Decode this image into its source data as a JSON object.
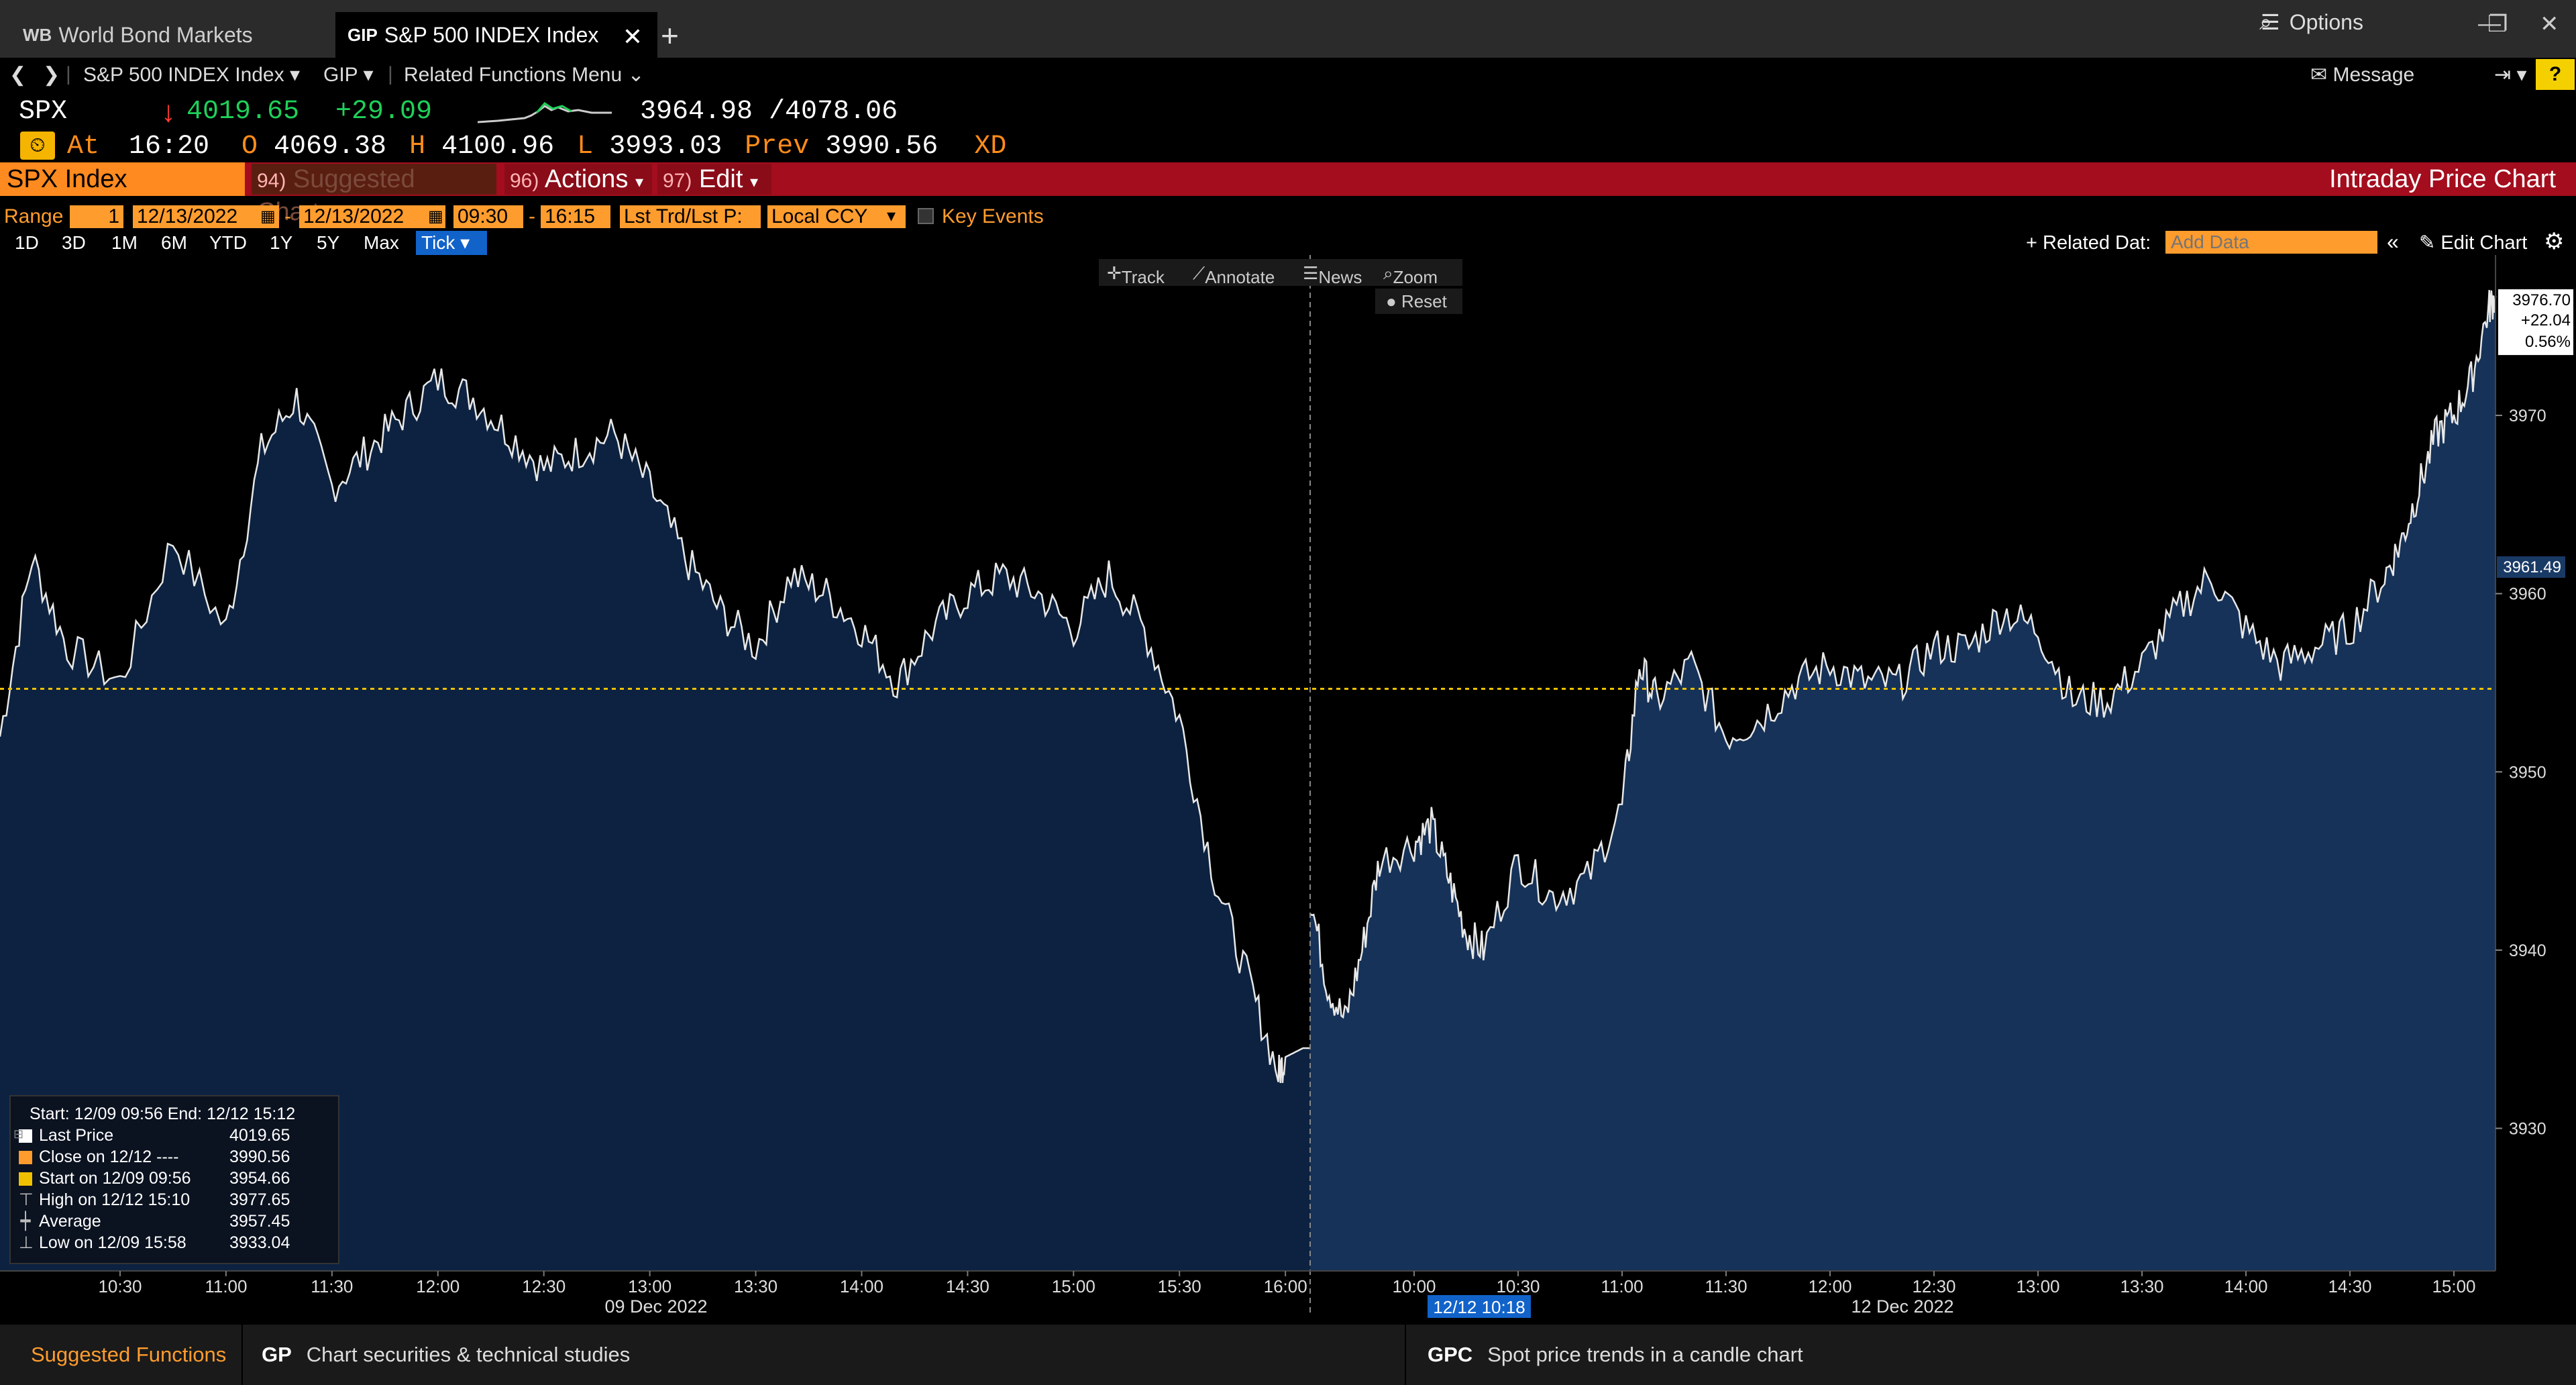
{
  "tabs": [
    {
      "code": "WB",
      "label": "World Bond Markets",
      "active": false
    },
    {
      "code": "GIP",
      "label": "S&P 500 INDEX Index",
      "active": true
    }
  ],
  "window": {
    "options_label": "Options",
    "message_label": "Message",
    "help_label": "?"
  },
  "nav": {
    "security": "S&P 500 INDEX Index",
    "function": "GIP",
    "related": "Related Functions Menu"
  },
  "quote": {
    "ticker": "SPX",
    "last": "4019.65",
    "change": "+29.09",
    "range_low": "3964.98",
    "range_high": "4078.06",
    "at_label": "At",
    "time": "16:20",
    "open_label": "O",
    "open": "4069.38",
    "high_label": "H",
    "high": "4100.96",
    "low_label": "L",
    "low": "3993.03",
    "prev_label": "Prev",
    "prev": "3990.56",
    "xd": "XD"
  },
  "header": {
    "security_box": "SPX Index",
    "suggested_num": "94)",
    "suggested": "Suggested Charts",
    "actions_num": "96)",
    "actions": "Actions",
    "edit_num": "97)",
    "edit": "Edit",
    "title": "Intraday Price Chart"
  },
  "range": {
    "label": "Range",
    "count": "1",
    "start_date": "12/13/2022",
    "end_date": "12/13/2022",
    "start_time": "09:30",
    "end_time": "16:15",
    "field": "Lst Trd/Lst P:",
    "currency": "Local CCY",
    "key_events": "Key Events"
  },
  "periods": [
    "1D",
    "3D",
    "1M",
    "6M",
    "YTD",
    "1Y",
    "5Y",
    "Max"
  ],
  "period_selected": "Tick",
  "right_controls": {
    "related_data": "Related Dat:",
    "add_data_placeholder": "Add Data",
    "edit_chart": "Edit Chart"
  },
  "toolbar": {
    "track": "Track",
    "annotate": "Annotate",
    "news": "News",
    "zoom": "Zoom",
    "reset": "Reset"
  },
  "legend": {
    "header": "Start: 12/09 09:56 End:  12/12 15:12",
    "rows": [
      {
        "label": "Last Price",
        "value": "4019.65",
        "color": "#ffffff"
      },
      {
        "label": "Close on 12/12 ----",
        "value": "3990.56",
        "color": "#ff9c2e"
      },
      {
        "label": "Start on 12/09 09:56",
        "value": "3954.66",
        "color": "#f0c000"
      },
      {
        "label": "High on 12/12 15:10",
        "value": "3977.65",
        "color": "#bbbbbb"
      },
      {
        "label": "Average",
        "value": "3957.45",
        "color": "#bbbbbb"
      },
      {
        "label": "Low on 12/09 15:58",
        "value": "3933.04",
        "color": "#bbbbbb"
      }
    ]
  },
  "chart_data": {
    "type": "area",
    "series": [
      {
        "name": "Last Price"
      }
    ],
    "ylim": [
      3922,
      3979
    ],
    "yticks": [
      3930,
      3940,
      3950,
      3960,
      3970
    ],
    "reference_line": 3954.66,
    "last_marker": {
      "price": "3976.70",
      "change": "+22.04",
      "pct": "0.56%"
    },
    "mid_marker": "3961.49",
    "day1": {
      "date_label": "09 Dec 2022",
      "ticks": [
        "10:30",
        "11:00",
        "11:30",
        "12:00",
        "12:30",
        "13:00",
        "13:30",
        "14:00",
        "14:30",
        "15:00",
        "15:30",
        "16:00"
      ],
      "x": [
        "09:56",
        "10:05",
        "10:15",
        "10:30",
        "10:45",
        "11:00",
        "11:10",
        "11:20",
        "11:30",
        "11:40",
        "11:50",
        "12:00",
        "12:10",
        "12:20",
        "12:30",
        "12:40",
        "12:50",
        "13:00",
        "13:10",
        "13:20",
        "13:30",
        "13:40",
        "13:50",
        "14:00",
        "14:10",
        "14:20",
        "14:30",
        "14:40",
        "14:50",
        "15:00",
        "15:10",
        "15:20",
        "15:30",
        "15:40",
        "15:50",
        "15:58",
        "16:00",
        "16:05",
        "16:07"
      ],
      "y": [
        3952,
        3962,
        3957,
        3955,
        3963,
        3958,
        3968,
        3971,
        3966,
        3968,
        3970,
        3972,
        3971,
        3969,
        3967,
        3968,
        3969,
        3966,
        3962,
        3959,
        3957,
        3961,
        3960,
        3958,
        3955,
        3958,
        3960,
        3961,
        3960,
        3958,
        3961,
        3958,
        3953,
        3944,
        3938,
        3933.04,
        3934,
        3934.5,
        3934.5
      ]
    },
    "day2": {
      "date_label": "12 Dec 2022",
      "highlight_label": "12/12 10:18",
      "ticks": [
        "10:00",
        "10:30",
        "11:00",
        "11:30",
        "12:00",
        "12:30",
        "13:00",
        "13:30",
        "14:00",
        "14:30",
        "15:00"
      ],
      "x": [
        "09:30",
        "09:35",
        "09:40",
        "09:45",
        "09:50",
        "10:00",
        "10:05",
        "10:10",
        "10:15",
        "10:20",
        "10:30",
        "10:40",
        "10:50",
        "11:00",
        "11:05",
        "11:10",
        "11:20",
        "11:30",
        "11:40",
        "11:50",
        "12:00",
        "12:10",
        "12:20",
        "12:30",
        "12:40",
        "12:50",
        "13:00",
        "13:10",
        "13:20",
        "13:30",
        "13:40",
        "13:50",
        "14:00",
        "14:10",
        "14:20",
        "14:30",
        "14:40",
        "14:45",
        "14:50",
        "14:55",
        "15:00",
        "15:05",
        "15:10",
        "15:12"
      ],
      "y": [
        3943,
        3938,
        3936,
        3940,
        3945,
        3946,
        3947,
        3944,
        3941,
        3940,
        3945,
        3943,
        3944,
        3948,
        3956,
        3954,
        3956,
        3952,
        3953,
        3955,
        3956,
        3955,
        3955,
        3957,
        3957,
        3959,
        3958,
        3954,
        3954,
        3956,
        3959,
        3961,
        3958,
        3956,
        3957,
        3958,
        3961,
        3963,
        3966,
        3969,
        3970,
        3972,
        3976,
        3976.7
      ]
    }
  }
}
